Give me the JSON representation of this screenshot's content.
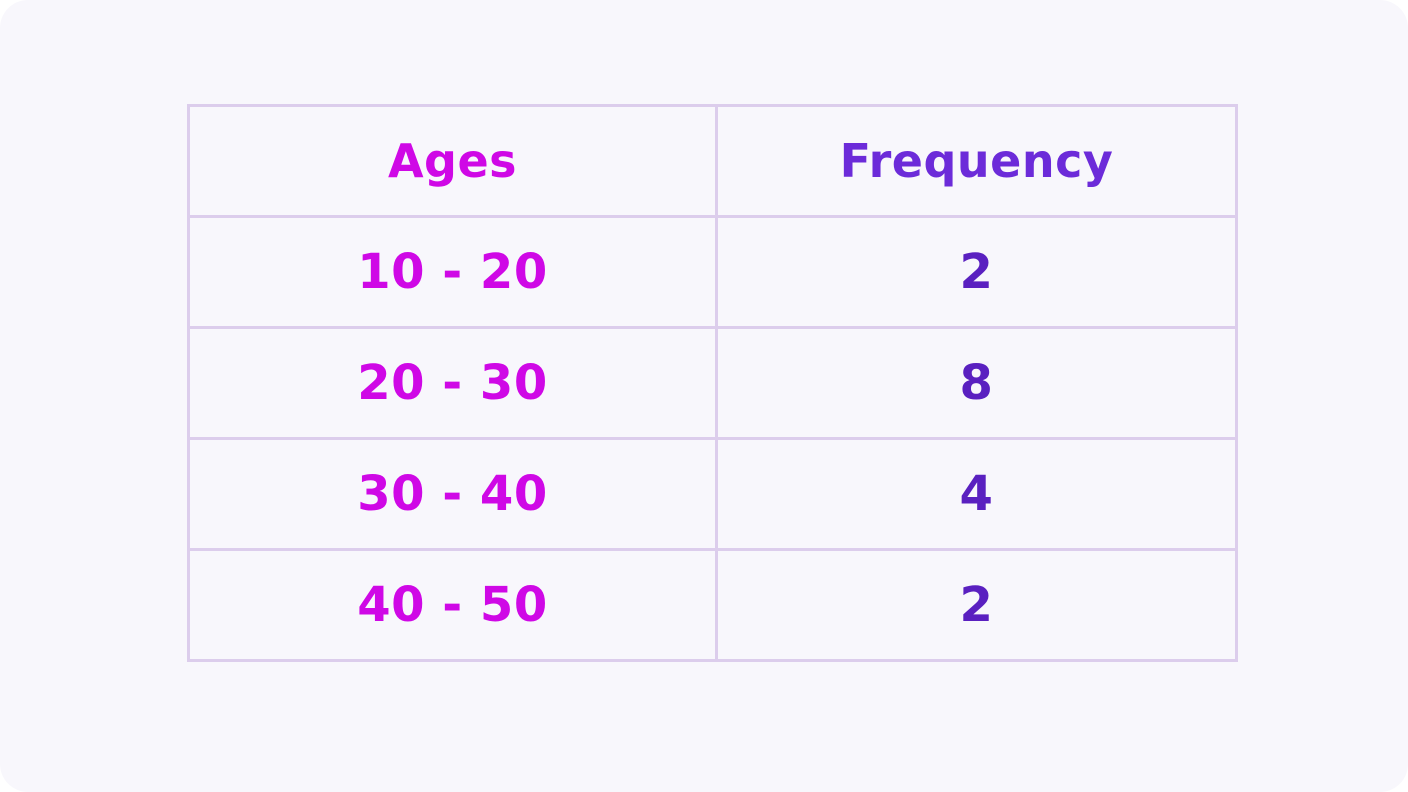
{
  "chart_data": {
    "type": "table",
    "columns": [
      "Ages",
      "Frequency"
    ],
    "rows": [
      [
        "10 - 20",
        "2"
      ],
      [
        "20 - 30",
        "8"
      ],
      [
        "30 - 40",
        "4"
      ],
      [
        "40 - 50",
        "2"
      ]
    ],
    "categories": [
      "10 - 20",
      "20 - 30",
      "30 - 40",
      "40 - 50"
    ],
    "values": [
      2,
      8,
      4,
      2
    ]
  },
  "colors": {
    "ages_text": "#cf08e6",
    "frequency_header_text": "#6c2bd9",
    "frequency_text": "#5a20c0",
    "grid_lines": "#dccdec",
    "card_background": "#f8f7fc"
  }
}
